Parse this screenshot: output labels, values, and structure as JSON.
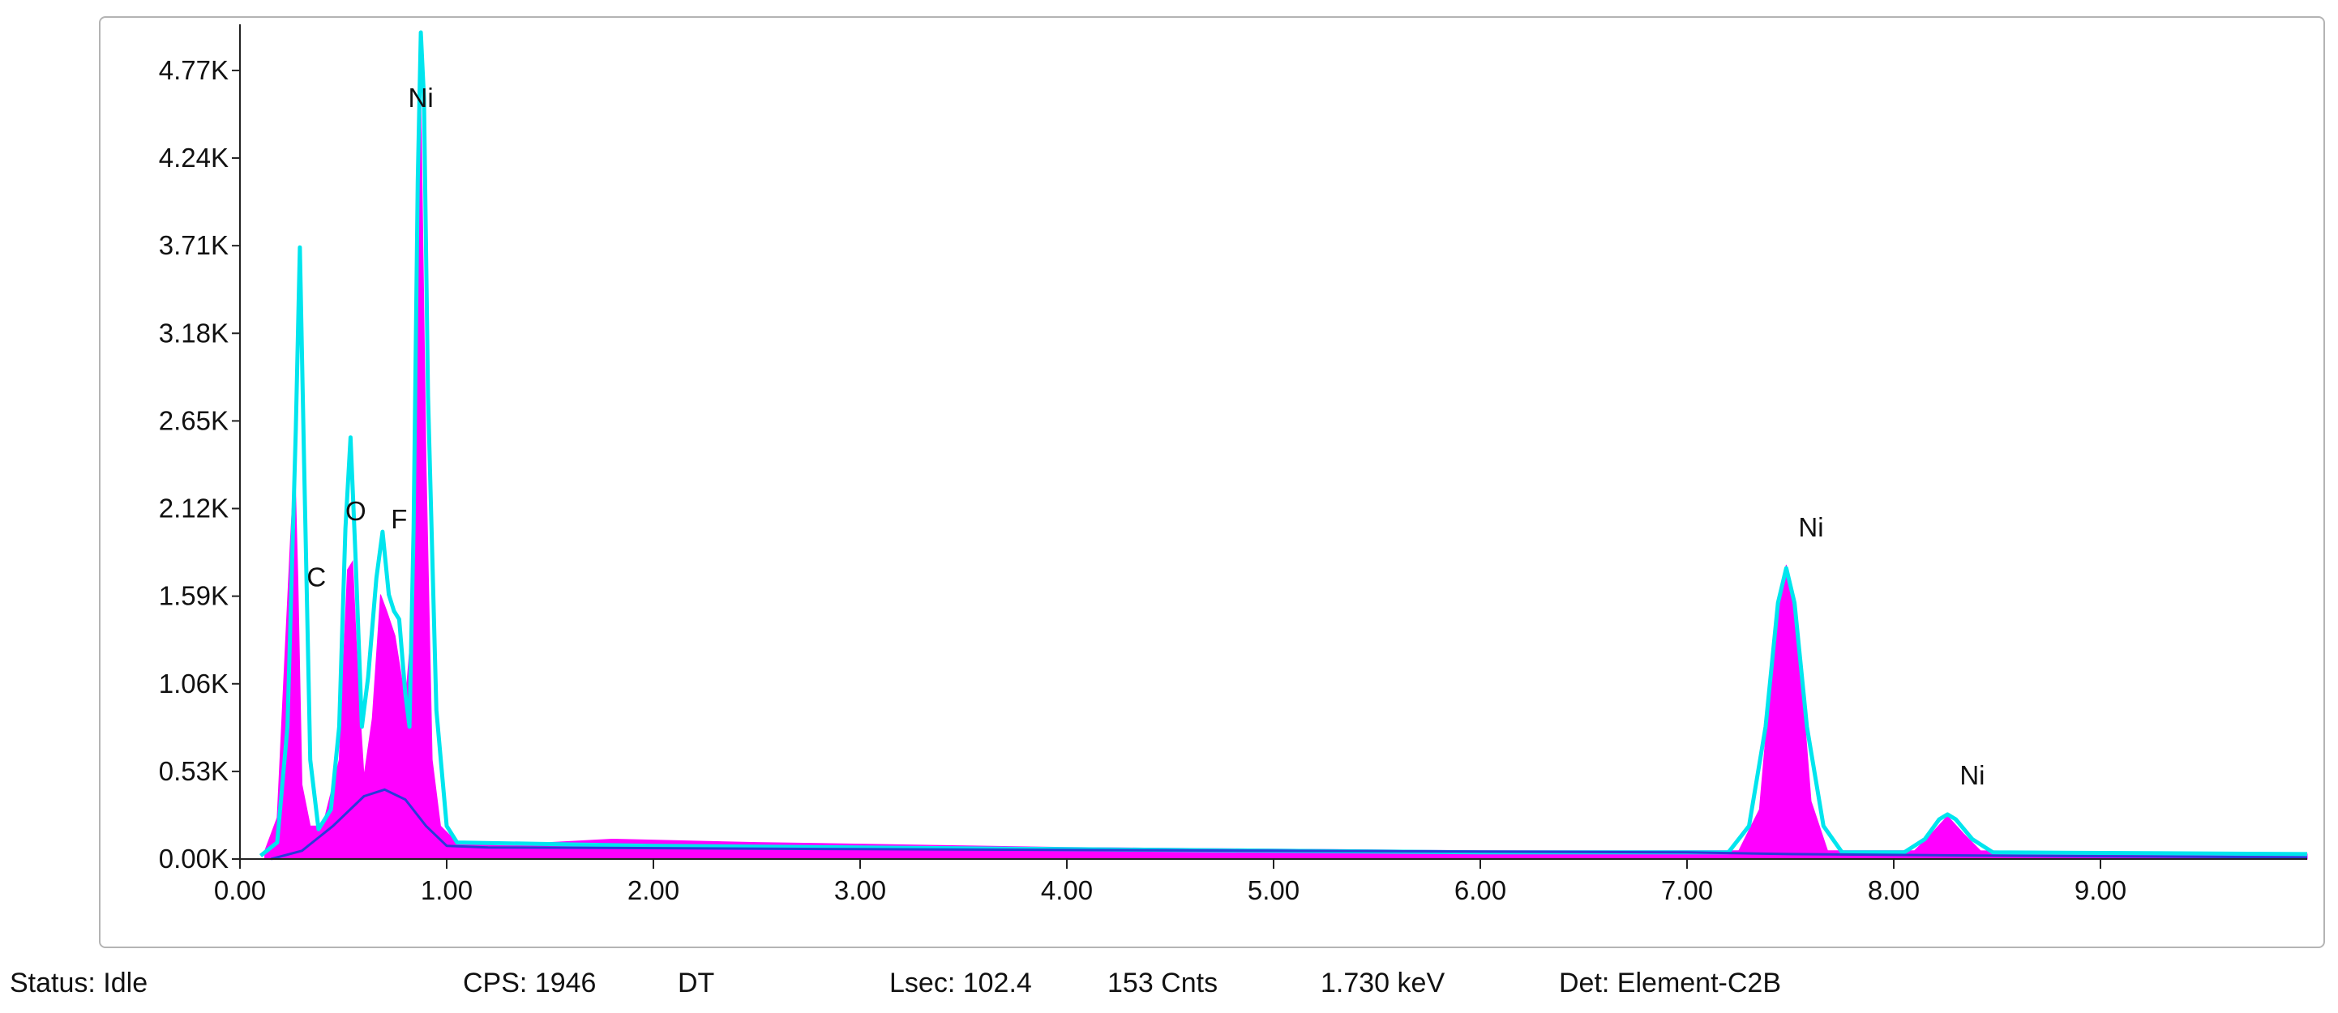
{
  "chart_data": {
    "type": "area",
    "title": "",
    "xlabel": "",
    "ylabel": "",
    "xlim": [
      0,
      10
    ],
    "ylim": [
      0,
      5
    ],
    "x_ticks": [
      0,
      1,
      2,
      3,
      4,
      5,
      6,
      7,
      8,
      9
    ],
    "x_tick_labels": [
      "0.00",
      "1.00",
      "2.00",
      "3.00",
      "4.00",
      "5.00",
      "6.00",
      "7.00",
      "8.00",
      "9.00"
    ],
    "y_ticks": [
      0,
      0.53,
      1.06,
      1.59,
      2.12,
      2.65,
      3.18,
      3.71,
      4.24,
      4.77
    ],
    "y_tick_labels": [
      "0.00K",
      "0.53K",
      "1.06K",
      "1.59K",
      "2.12K",
      "2.65K",
      "3.18K",
      "3.71K",
      "4.24K",
      "4.77K"
    ],
    "y_unit": "K",
    "series": [
      {
        "role": "measured spectrum",
        "style": "filled",
        "color": "#ff00ff",
        "points": [
          [
            0.12,
            0.05
          ],
          [
            0.18,
            0.25
          ],
          [
            0.22,
            1.3
          ],
          [
            0.245,
            1.95
          ],
          [
            0.265,
            2.4
          ],
          [
            0.28,
            1.7
          ],
          [
            0.3,
            0.45
          ],
          [
            0.34,
            0.2
          ],
          [
            0.4,
            0.2
          ],
          [
            0.44,
            0.4
          ],
          [
            0.48,
            0.6
          ],
          [
            0.52,
            1.75
          ],
          [
            0.545,
            1.8
          ],
          [
            0.57,
            1.1
          ],
          [
            0.6,
            0.5
          ],
          [
            0.64,
            0.85
          ],
          [
            0.68,
            1.6
          ],
          [
            0.71,
            1.5
          ],
          [
            0.75,
            1.35
          ],
          [
            0.8,
            0.95
          ],
          [
            0.83,
            1.4
          ],
          [
            0.85,
            3.1
          ],
          [
            0.875,
            4.6
          ],
          [
            0.9,
            2.4
          ],
          [
            0.93,
            0.6
          ],
          [
            0.97,
            0.2
          ],
          [
            1.05,
            0.1
          ],
          [
            1.5,
            0.1
          ],
          [
            1.8,
            0.12
          ],
          [
            2.5,
            0.1
          ],
          [
            4.0,
            0.07
          ],
          [
            5.0,
            0.06
          ],
          [
            6.0,
            0.05
          ],
          [
            7.25,
            0.05
          ],
          [
            7.35,
            0.3
          ],
          [
            7.42,
            1.3
          ],
          [
            7.48,
            1.78
          ],
          [
            7.54,
            1.3
          ],
          [
            7.6,
            0.35
          ],
          [
            7.68,
            0.05
          ],
          [
            8.1,
            0.05
          ],
          [
            8.18,
            0.15
          ],
          [
            8.26,
            0.26
          ],
          [
            8.34,
            0.15
          ],
          [
            8.42,
            0.05
          ],
          [
            10,
            0.03
          ]
        ]
      },
      {
        "role": "fitted spectrum",
        "style": "line",
        "color": "#00e5ee",
        "points": [
          [
            0.1,
            0.02
          ],
          [
            0.18,
            0.1
          ],
          [
            0.23,
            0.8
          ],
          [
            0.27,
            2.6
          ],
          [
            0.29,
            3.7
          ],
          [
            0.31,
            2.4
          ],
          [
            0.34,
            0.6
          ],
          [
            0.38,
            0.18
          ],
          [
            0.44,
            0.3
          ],
          [
            0.48,
            0.8
          ],
          [
            0.51,
            2.0
          ],
          [
            0.535,
            2.55
          ],
          [
            0.56,
            1.8
          ],
          [
            0.59,
            0.8
          ],
          [
            0.62,
            1.1
          ],
          [
            0.66,
            1.7
          ],
          [
            0.69,
            1.98
          ],
          [
            0.72,
            1.6
          ],
          [
            0.745,
            1.5
          ],
          [
            0.77,
            1.45
          ],
          [
            0.8,
            1.0
          ],
          [
            0.82,
            0.8
          ],
          [
            0.84,
            2.0
          ],
          [
            0.86,
            4.1
          ],
          [
            0.875,
            5.05
          ],
          [
            0.89,
            4.6
          ],
          [
            0.91,
            2.8
          ],
          [
            0.95,
            0.9
          ],
          [
            1.0,
            0.2
          ],
          [
            1.05,
            0.1
          ],
          [
            2.0,
            0.08
          ],
          [
            4.0,
            0.06
          ],
          [
            6.0,
            0.04
          ],
          [
            7.2,
            0.04
          ],
          [
            7.3,
            0.2
          ],
          [
            7.38,
            0.8
          ],
          [
            7.44,
            1.55
          ],
          [
            7.48,
            1.76
          ],
          [
            7.52,
            1.55
          ],
          [
            7.58,
            0.8
          ],
          [
            7.66,
            0.2
          ],
          [
            7.75,
            0.04
          ],
          [
            8.05,
            0.04
          ],
          [
            8.15,
            0.12
          ],
          [
            8.22,
            0.24
          ],
          [
            8.26,
            0.27
          ],
          [
            8.3,
            0.24
          ],
          [
            8.38,
            0.12
          ],
          [
            8.48,
            0.04
          ],
          [
            10,
            0.03
          ]
        ]
      },
      {
        "role": "background",
        "style": "line",
        "color": "#2a3ad8",
        "points": [
          [
            0.15,
            0.0
          ],
          [
            0.3,
            0.05
          ],
          [
            0.45,
            0.2
          ],
          [
            0.6,
            0.38
          ],
          [
            0.7,
            0.42
          ],
          [
            0.8,
            0.36
          ],
          [
            0.9,
            0.2
          ],
          [
            1.0,
            0.08
          ],
          [
            1.2,
            0.07
          ],
          [
            3.0,
            0.06
          ],
          [
            5.0,
            0.05
          ],
          [
            7.0,
            0.04
          ],
          [
            7.5,
            0.03
          ],
          [
            8.5,
            0.02
          ],
          [
            10,
            0.01
          ]
        ]
      }
    ],
    "peak_labels": [
      {
        "text": "Ni",
        "x": 0.875,
        "y": 4.55
      },
      {
        "text": "C",
        "x": 0.37,
        "y": 1.65
      },
      {
        "text": "O",
        "x": 0.56,
        "y": 2.05
      },
      {
        "text": "F",
        "x": 0.77,
        "y": 2.0
      },
      {
        "text": "Ni",
        "x": 7.6,
        "y": 1.95
      },
      {
        "text": "Ni",
        "x": 8.38,
        "y": 0.45
      }
    ],
    "grid": false,
    "legend": "none"
  },
  "status": {
    "status": "Status: Idle",
    "cps": "CPS: 1946",
    "dt": "DT",
    "lsec": "Lsec: 102.4",
    "cnts": "153 Cnts",
    "kev": "1.730 keV",
    "det": "Det: Element-C2B"
  }
}
